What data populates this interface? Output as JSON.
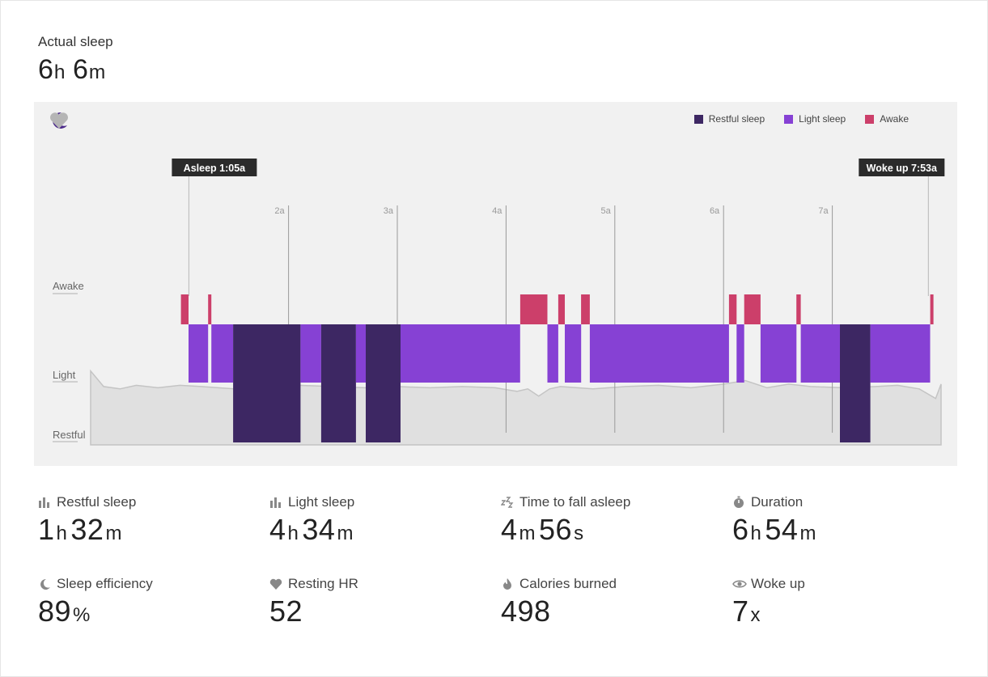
{
  "summary": {
    "label": "Actual sleep",
    "value_h": "6",
    "unit_h": "h",
    "value_m": "6",
    "unit_m": "m"
  },
  "legend": [
    {
      "label": "Restful sleep",
      "color": "#3d2763"
    },
    {
      "label": "Light sleep",
      "color": "#8641d4"
    },
    {
      "label": "Awake",
      "color": "#cc3f6a"
    }
  ],
  "icons": {
    "moon": "moon-icon",
    "heart": "heart-icon"
  },
  "chart_data": {
    "type": "timeline",
    "x_unit": "hours after midnight",
    "xlim": [
      0.18,
      8.0
    ],
    "tick_labels": [
      "2a",
      "3a",
      "4a",
      "5a",
      "6a",
      "7a"
    ],
    "tick_values": [
      2,
      3,
      4,
      5,
      6,
      7
    ],
    "y_levels": [
      "Awake",
      "Light",
      "Restful"
    ],
    "markers": [
      {
        "label": "Asleep 1:05a",
        "time": 1.0833
      },
      {
        "label": "Woke up 7:53a",
        "time": 7.8833
      }
    ],
    "segments": [
      {
        "start": 1.01,
        "end": 1.08,
        "stage": "Awake"
      },
      {
        "start": 1.08,
        "end": 1.26,
        "stage": "Light"
      },
      {
        "start": 1.26,
        "end": 1.29,
        "stage": "Awake"
      },
      {
        "start": 1.29,
        "end": 1.49,
        "stage": "Light"
      },
      {
        "start": 1.49,
        "end": 2.11,
        "stage": "Restful"
      },
      {
        "start": 2.11,
        "end": 2.3,
        "stage": "Light"
      },
      {
        "start": 2.3,
        "end": 2.62,
        "stage": "Restful"
      },
      {
        "start": 2.62,
        "end": 2.71,
        "stage": "Light"
      },
      {
        "start": 2.71,
        "end": 3.03,
        "stage": "Restful"
      },
      {
        "start": 3.03,
        "end": 4.13,
        "stage": "Light"
      },
      {
        "start": 4.13,
        "end": 4.38,
        "stage": "Awake"
      },
      {
        "start": 4.38,
        "end": 4.48,
        "stage": "Light"
      },
      {
        "start": 4.48,
        "end": 4.54,
        "stage": "Awake"
      },
      {
        "start": 4.54,
        "end": 4.69,
        "stage": "Light"
      },
      {
        "start": 4.69,
        "end": 4.77,
        "stage": "Awake"
      },
      {
        "start": 4.77,
        "end": 6.05,
        "stage": "Light"
      },
      {
        "start": 6.05,
        "end": 6.12,
        "stage": "Awake"
      },
      {
        "start": 6.12,
        "end": 6.19,
        "stage": "Light"
      },
      {
        "start": 6.19,
        "end": 6.34,
        "stage": "Awake"
      },
      {
        "start": 6.34,
        "end": 6.67,
        "stage": "Light"
      },
      {
        "start": 6.67,
        "end": 6.71,
        "stage": "Awake"
      },
      {
        "start": 6.71,
        "end": 7.07,
        "stage": "Light"
      },
      {
        "start": 7.07,
        "end": 7.35,
        "stage": "Restful"
      },
      {
        "start": 7.35,
        "end": 7.9,
        "stage": "Light"
      },
      {
        "start": 7.9,
        "end": 7.93,
        "stage": "Awake"
      }
    ],
    "heart_rate_trace": [
      [
        0.18,
        0.55
      ],
      [
        0.3,
        0.42
      ],
      [
        0.45,
        0.4
      ],
      [
        0.6,
        0.43
      ],
      [
        0.8,
        0.41
      ],
      [
        1.0,
        0.43
      ],
      [
        1.2,
        0.42
      ],
      [
        1.5,
        0.4
      ],
      [
        1.8,
        0.41
      ],
      [
        2.1,
        0.43
      ],
      [
        2.4,
        0.42
      ],
      [
        2.7,
        0.41
      ],
      [
        3.0,
        0.42
      ],
      [
        3.3,
        0.41
      ],
      [
        3.6,
        0.42
      ],
      [
        3.9,
        0.41
      ],
      [
        4.1,
        0.38
      ],
      [
        4.2,
        0.4
      ],
      [
        4.3,
        0.34
      ],
      [
        4.4,
        0.4
      ],
      [
        4.5,
        0.42
      ],
      [
        4.8,
        0.4
      ],
      [
        5.1,
        0.42
      ],
      [
        5.4,
        0.43
      ],
      [
        5.7,
        0.41
      ],
      [
        6.0,
        0.44
      ],
      [
        6.2,
        0.47
      ],
      [
        6.4,
        0.41
      ],
      [
        6.6,
        0.44
      ],
      [
        6.8,
        0.42
      ],
      [
        7.1,
        0.41
      ],
      [
        7.4,
        0.42
      ],
      [
        7.6,
        0.43
      ],
      [
        7.8,
        0.4
      ],
      [
        7.95,
        0.32
      ],
      [
        8.0,
        0.44
      ]
    ]
  },
  "stats": [
    {
      "label": "Restful sleep",
      "icon": "bar-chart-icon",
      "parts": [
        [
          "1",
          "h"
        ],
        [
          "32",
          "m"
        ]
      ]
    },
    {
      "label": "Light sleep",
      "icon": "bar-chart-icon",
      "parts": [
        [
          "4",
          "h"
        ],
        [
          "34",
          "m"
        ]
      ]
    },
    {
      "label": "Time to fall asleep",
      "icon": "zzz-icon",
      "parts": [
        [
          "4",
          "m"
        ],
        [
          "56",
          "s"
        ]
      ]
    },
    {
      "label": "Duration",
      "icon": "stopwatch-icon",
      "parts": [
        [
          "6",
          "h"
        ],
        [
          "54",
          "m"
        ]
      ]
    },
    {
      "label": "Sleep efficiency",
      "icon": "moon-small-icon",
      "parts": [
        [
          "89",
          "%"
        ]
      ]
    },
    {
      "label": "Resting HR",
      "icon": "heart-small-icon",
      "parts": [
        [
          "52",
          ""
        ]
      ]
    },
    {
      "label": "Calories burned",
      "icon": "flame-icon",
      "parts": [
        [
          "498",
          ""
        ]
      ]
    },
    {
      "label": "Woke up",
      "icon": "eye-icon",
      "parts": [
        [
          "7",
          "x"
        ]
      ]
    }
  ]
}
